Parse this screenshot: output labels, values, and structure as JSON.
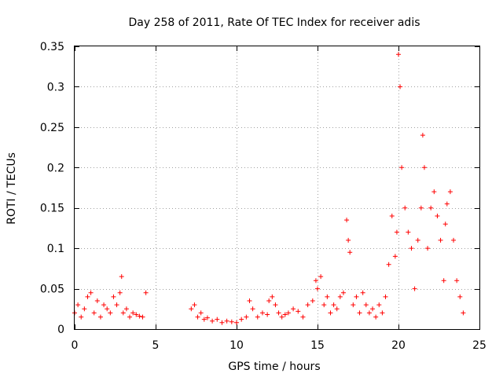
{
  "chart_data": {
    "type": "scatter",
    "title": "Day 258 of 2011, Rate Of TEC Index for receiver adis",
    "xlabel": "GPS time / hours",
    "ylabel": "ROTI / TECUs",
    "xlim": [
      0,
      25
    ],
    "ylim": [
      0,
      0.35
    ],
    "x_ticks": [
      0,
      5,
      10,
      15,
      20,
      25
    ],
    "x_tick_labels": [
      "0",
      "5",
      "10",
      "15",
      "20",
      "25"
    ],
    "y_ticks": [
      0,
      0.05,
      0.1,
      0.15,
      0.2,
      0.25,
      0.3,
      0.35
    ],
    "y_tick_labels": [
      "0",
      "0.05",
      "0.1",
      "0.15",
      "0.2",
      "0.25",
      "0.3",
      "0.35"
    ],
    "grid": true,
    "legend": "none",
    "marker": "+",
    "color": "#ff0000",
    "x": [
      0.0,
      0.2,
      0.4,
      0.6,
      0.8,
      1.0,
      1.2,
      1.4,
      1.6,
      1.8,
      2.0,
      2.2,
      2.4,
      2.6,
      2.8,
      2.9,
      3.0,
      3.2,
      3.4,
      3.6,
      3.8,
      4.0,
      4.2,
      4.4,
      7.2,
      7.4,
      7.6,
      7.8,
      8.0,
      8.2,
      8.5,
      8.8,
      9.1,
      9.4,
      9.7,
      10.0,
      10.3,
      10.6,
      10.8,
      11.0,
      11.3,
      11.6,
      11.9,
      12.0,
      12.2,
      12.4,
      12.6,
      12.8,
      13.0,
      13.2,
      13.5,
      13.8,
      14.1,
      14.4,
      14.7,
      14.9,
      15.0,
      15.2,
      15.4,
      15.6,
      15.8,
      16.0,
      16.2,
      16.4,
      16.6,
      16.8,
      16.9,
      17.0,
      17.2,
      17.4,
      17.6,
      17.8,
      18.0,
      18.2,
      18.4,
      18.6,
      18.8,
      19.0,
      19.2,
      19.4,
      19.6,
      19.8,
      19.9,
      20.0,
      20.1,
      20.2,
      20.4,
      20.6,
      20.8,
      21.0,
      21.2,
      21.4,
      21.5,
      21.6,
      21.8,
      22.0,
      22.2,
      22.4,
      22.6,
      22.8,
      22.9,
      23.0,
      23.2,
      23.4,
      23.6,
      23.8,
      24.0
    ],
    "y": [
      0.02,
      0.03,
      0.015,
      0.025,
      0.04,
      0.045,
      0.02,
      0.035,
      0.015,
      0.03,
      0.025,
      0.02,
      0.04,
      0.03,
      0.045,
      0.065,
      0.02,
      0.025,
      0.015,
      0.02,
      0.018,
      0.016,
      0.015,
      0.045,
      0.025,
      0.03,
      0.015,
      0.02,
      0.012,
      0.014,
      0.01,
      0.012,
      0.008,
      0.01,
      0.009,
      0.008,
      0.012,
      0.015,
      0.035,
      0.025,
      0.015,
      0.02,
      0.018,
      0.035,
      0.04,
      0.03,
      0.02,
      0.015,
      0.018,
      0.02,
      0.025,
      0.022,
      0.015,
      0.03,
      0.035,
      0.06,
      0.05,
      0.065,
      0.03,
      0.04,
      0.02,
      0.03,
      0.025,
      0.04,
      0.045,
      0.135,
      0.11,
      0.095,
      0.03,
      0.04,
      0.02,
      0.045,
      0.03,
      0.02,
      0.025,
      0.015,
      0.03,
      0.02,
      0.04,
      0.08,
      0.14,
      0.09,
      0.12,
      0.34,
      0.3,
      0.2,
      0.15,
      0.12,
      0.1,
      0.05,
      0.11,
      0.15,
      0.24,
      0.2,
      0.1,
      0.15,
      0.17,
      0.14,
      0.11,
      0.06,
      0.13,
      0.155,
      0.17,
      0.11,
      0.06,
      0.04,
      0.02
    ]
  }
}
